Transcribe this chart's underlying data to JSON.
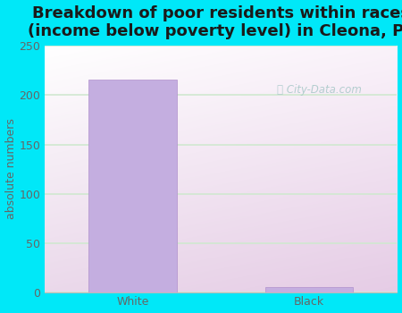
{
  "title": "Breakdown of poor residents within races\n(income below poverty level) in Cleona, PA",
  "categories": [
    "White",
    "Black"
  ],
  "values": [
    216,
    5
  ],
  "bar_color": "#c4aee0",
  "bar_edge_color": "#b090cc",
  "ylabel": "absolute numbers",
  "ylim": [
    0,
    250
  ],
  "yticks": [
    0,
    50,
    100,
    150,
    200,
    250
  ],
  "background_outer": "#00e8f8",
  "background_plot_top": "#d8f0d0",
  "background_plot_bottom": "#ffffff",
  "title_fontsize": 13,
  "axis_label_fontsize": 9,
  "tick_fontsize": 9,
  "watermark": "City-Data.com",
  "watermark_color": "#a8c8c8",
  "grid_color": "#d0e8d0",
  "title_color": "#1a1a1a",
  "tick_color": "#666666",
  "bar_width": 0.5
}
